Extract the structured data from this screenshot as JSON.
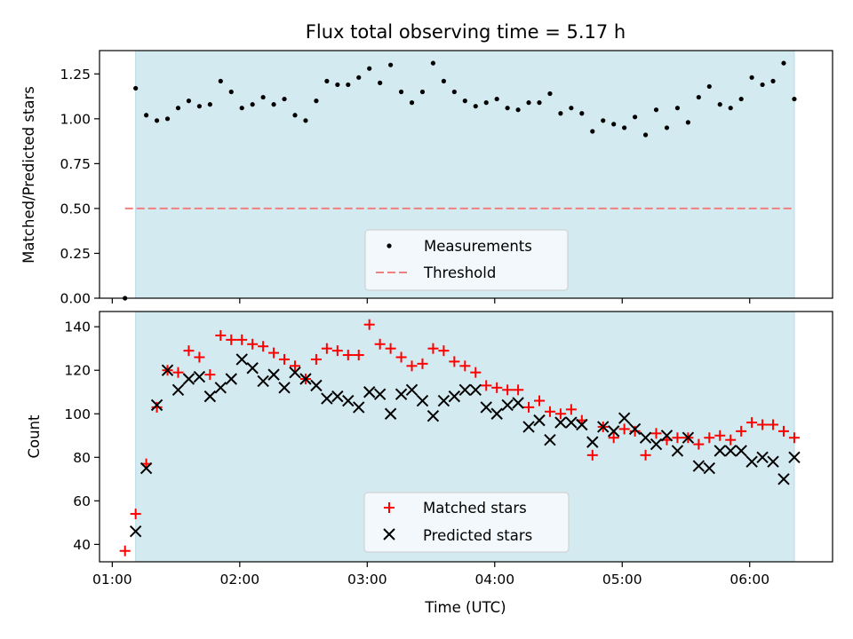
{
  "chart_data": [
    {
      "type": "scatter",
      "title": "Flux total observing time = 5.17 h",
      "xlabel": "",
      "ylabel": "Matched/Predicted stars",
      "xlim": [
        "00:54",
        "06:39"
      ],
      "ylim": [
        0,
        1.38
      ],
      "y_ticks": [
        "0.00",
        "0.25",
        "0.50",
        "0.75",
        "1.00",
        "1.25"
      ],
      "grid": false,
      "legend_position": "bottom-center",
      "observing_window": {
        "start": "01:11",
        "end": "06:21",
        "color": "#d3eaf0"
      },
      "series": [
        {
          "name": "Measurements",
          "marker": "dot",
          "color": "#000000",
          "x": [
            "01:06",
            "01:11",
            "01:16",
            "01:21",
            "01:26",
            "01:31",
            "01:36",
            "01:41",
            "01:46",
            "01:51",
            "01:56",
            "02:01",
            "02:06",
            "02:11",
            "02:16",
            "02:21",
            "02:26",
            "02:31",
            "02:36",
            "02:41",
            "02:46",
            "02:51",
            "02:56",
            "03:01",
            "03:06",
            "03:11",
            "03:16",
            "03:21",
            "03:26",
            "03:31",
            "03:36",
            "03:41",
            "03:46",
            "03:51",
            "03:56",
            "04:01",
            "04:06",
            "04:11",
            "04:16",
            "04:21",
            "04:26",
            "04:31",
            "04:36",
            "04:41",
            "04:46",
            "04:51",
            "04:56",
            "05:01",
            "05:06",
            "05:11",
            "05:16",
            "05:21",
            "05:26",
            "05:31",
            "05:36",
            "05:41",
            "05:46",
            "05:51",
            "05:56",
            "06:01",
            "06:06",
            "06:11",
            "06:16",
            "06:21"
          ],
          "y": [
            0.0,
            1.17,
            1.02,
            0.99,
            1.0,
            1.06,
            1.1,
            1.07,
            1.08,
            1.21,
            1.15,
            1.06,
            1.08,
            1.12,
            1.08,
            1.11,
            1.02,
            0.99,
            1.1,
            1.21,
            1.19,
            1.19,
            1.23,
            1.28,
            1.2,
            1.3,
            1.15,
            1.09,
            1.15,
            1.31,
            1.21,
            1.15,
            1.1,
            1.07,
            1.09,
            1.11,
            1.06,
            1.05,
            1.09,
            1.09,
            1.14,
            1.03,
            1.06,
            1.03,
            0.93,
            0.99,
            0.97,
            0.95,
            1.01,
            0.91,
            1.05,
            0.95,
            1.06,
            0.98,
            1.12,
            1.18,
            1.08,
            1.06,
            1.11,
            1.23,
            1.19,
            1.21,
            1.31,
            1.11
          ]
        },
        {
          "name": "Threshold",
          "style": "dashed",
          "color": "#f08080",
          "x": [
            "01:06",
            "06:21"
          ],
          "y": [
            0.5,
            0.5
          ]
        }
      ]
    },
    {
      "type": "scatter",
      "title": "",
      "xlabel": "Time (UTC)",
      "ylabel": "Count",
      "xlim": [
        "00:54",
        "06:39"
      ],
      "ylim": [
        32,
        147
      ],
      "x_ticks": [
        "01:00",
        "02:00",
        "03:00",
        "04:00",
        "05:00",
        "06:00"
      ],
      "y_ticks": [
        "40",
        "60",
        "80",
        "100",
        "120",
        "140"
      ],
      "grid": false,
      "legend_position": "bottom-center",
      "observing_window": {
        "start": "01:11",
        "end": "06:21",
        "color": "#d3eaf0"
      },
      "series": [
        {
          "name": "Matched stars",
          "marker": "plus",
          "color": "#ff0000",
          "x": [
            "01:06",
            "01:11",
            "01:16",
            "01:21",
            "01:26",
            "01:31",
            "01:36",
            "01:41",
            "01:46",
            "01:51",
            "01:56",
            "02:01",
            "02:06",
            "02:11",
            "02:16",
            "02:21",
            "02:26",
            "02:31",
            "02:36",
            "02:41",
            "02:46",
            "02:51",
            "02:56",
            "03:01",
            "03:06",
            "03:11",
            "03:16",
            "03:21",
            "03:26",
            "03:31",
            "03:36",
            "03:41",
            "03:46",
            "03:51",
            "03:56",
            "04:01",
            "04:06",
            "04:11",
            "04:16",
            "04:21",
            "04:26",
            "04:31",
            "04:36",
            "04:41",
            "04:46",
            "04:51",
            "04:56",
            "05:01",
            "05:06",
            "05:11",
            "05:16",
            "05:21",
            "05:26",
            "05:31",
            "05:36",
            "05:41",
            "05:46",
            "05:51",
            "05:56",
            "06:01",
            "06:06",
            "06:11",
            "06:16",
            "06:21"
          ],
          "y": [
            37,
            54,
            77,
            103,
            120,
            119,
            129,
            126,
            118,
            136,
            134,
            134,
            132,
            131,
            128,
            125,
            122,
            116,
            125,
            130,
            129,
            127,
            127,
            141,
            132,
            130,
            126,
            122,
            123,
            130,
            129,
            124,
            122,
            119,
            113,
            112,
            111,
            111,
            103,
            106,
            101,
            100,
            102,
            97,
            81,
            94,
            89,
            93,
            92,
            81,
            91,
            88,
            89,
            89,
            86,
            89,
            90,
            88,
            92,
            96,
            95,
            95,
            92,
            89
          ]
        },
        {
          "name": "Predicted stars",
          "marker": "x",
          "color": "#000000",
          "x": [
            "01:06",
            "01:11",
            "01:16",
            "01:21",
            "01:26",
            "01:31",
            "01:36",
            "01:41",
            "01:46",
            "01:51",
            "01:56",
            "02:01",
            "02:06",
            "02:11",
            "02:16",
            "02:21",
            "02:26",
            "02:31",
            "02:36",
            "02:41",
            "02:46",
            "02:51",
            "02:56",
            "03:01",
            "03:06",
            "03:11",
            "03:16",
            "03:21",
            "03:26",
            "03:31",
            "03:36",
            "03:41",
            "03:46",
            "03:51",
            "03:56",
            "04:01",
            "04:06",
            "04:11",
            "04:16",
            "04:21",
            "04:26",
            "04:31",
            "04:36",
            "04:41",
            "04:46",
            "04:51",
            "04:56",
            "05:01",
            "05:06",
            "05:11",
            "05:16",
            "05:21",
            "05:26",
            "05:31",
            "05:36",
            "05:41",
            "05:46",
            "05:51",
            "05:56",
            "06:01",
            "06:06",
            "06:11",
            "06:16",
            "06:21"
          ],
          "y": [
            null,
            46,
            75,
            104,
            120,
            111,
            116,
            117,
            108,
            112,
            116,
            125,
            121,
            115,
            118,
            112,
            119,
            116,
            113,
            107,
            108,
            106,
            103,
            110,
            109,
            100,
            109,
            111,
            106,
            99,
            106,
            108,
            111,
            111,
            103,
            100,
            104,
            105,
            94,
            97,
            88,
            96,
            96,
            95,
            87,
            94,
            92,
            98,
            93,
            89,
            86,
            90,
            83,
            89,
            76,
            75,
            83,
            83,
            83,
            78,
            80,
            78,
            70,
            80
          ]
        }
      ]
    }
  ]
}
